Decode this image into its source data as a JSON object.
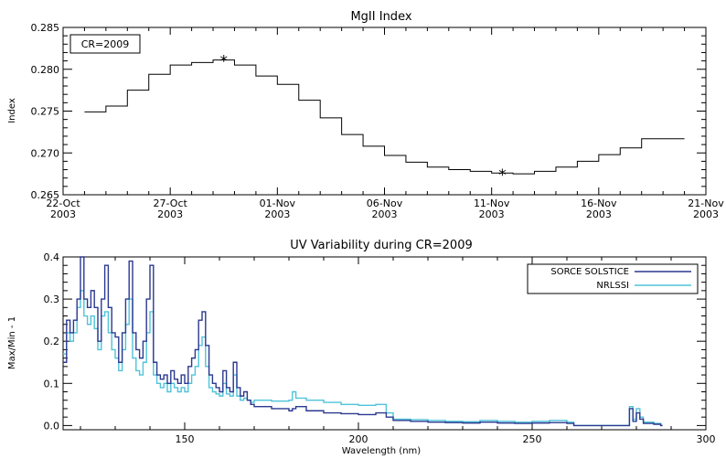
{
  "chart_data": [
    {
      "type": "line",
      "title": "MgII Index",
      "ylabel": "Index",
      "xlabel": "",
      "annotation": "CR=2009",
      "xlim": [
        "2003-10-22",
        "2003-11-21"
      ],
      "ylim": [
        0.265,
        0.285
      ],
      "x_ticks": [
        {
          "date": "2003-10-22",
          "label": [
            "22-Oct",
            "2003"
          ]
        },
        {
          "date": "2003-10-27",
          "label": [
            "27-Oct",
            "2003"
          ]
        },
        {
          "date": "2003-11-01",
          "label": [
            "01-Nov",
            "2003"
          ]
        },
        {
          "date": "2003-11-06",
          "label": [
            "06-Nov",
            "2003"
          ]
        },
        {
          "date": "2003-11-11",
          "label": [
            "11-Nov",
            "2003"
          ]
        },
        {
          "date": "2003-11-16",
          "label": [
            "16-Nov",
            "2003"
          ]
        },
        {
          "date": "2003-11-21",
          "label": [
            "21-Nov",
            "2003"
          ]
        }
      ],
      "y_ticks": [
        "0.265",
        "0.270",
        "0.275",
        "0.280",
        "0.285"
      ],
      "series": [
        {
          "step": true,
          "x": [
            "2003-10-23T12:00",
            "2003-10-24T12:00",
            "2003-10-25T12:00",
            "2003-10-26T12:00",
            "2003-10-27T12:00",
            "2003-10-28T12:00",
            "2003-10-29T12:00",
            "2003-10-30T12:00",
            "2003-10-31T12:00",
            "2003-11-01T12:00",
            "2003-11-02T12:00",
            "2003-11-03T12:00",
            "2003-11-04T12:00",
            "2003-11-05T12:00",
            "2003-11-06T12:00",
            "2003-11-07T12:00",
            "2003-11-08T12:00",
            "2003-11-09T12:00",
            "2003-11-10T12:00",
            "2003-11-11T12:00",
            "2003-11-12T12:00",
            "2003-11-13T12:00",
            "2003-11-14T12:00",
            "2003-11-15T12:00",
            "2003-11-16T12:00",
            "2003-11-17T12:00",
            "2003-11-18T12:00",
            "2003-11-19T12:00"
          ],
          "values": [
            0.2749,
            0.2756,
            0.2775,
            0.2794,
            0.2805,
            0.2808,
            0.2811,
            0.2805,
            0.2792,
            0.2782,
            0.2763,
            0.2742,
            0.2722,
            0.2708,
            0.2697,
            0.2689,
            0.2683,
            0.268,
            0.2678,
            0.2676,
            0.2675,
            0.2678,
            0.2683,
            0.269,
            0.2698,
            0.2706,
            0.2717,
            0.2717
          ]
        }
      ],
      "markers": [
        {
          "x": "2003-10-29T12:00",
          "y": 0.2811,
          "symbol": "*"
        },
        {
          "x": "2003-11-11T12:00",
          "y": 0.2675,
          "symbol": "*"
        }
      ]
    },
    {
      "type": "line",
      "title": "UV Variability during CR=2009",
      "xlabel": "Wavelength (nm)",
      "ylabel": "Max/Min - 1",
      "xlim": [
        115,
        300
      ],
      "ylim": [
        -0.01,
        0.4
      ],
      "x_ticks": [
        "150",
        "200",
        "250",
        "300"
      ],
      "y_ticks": [
        "0.0",
        "0.1",
        "0.2",
        "0.3",
        "0.4"
      ],
      "legend_position": "top-right",
      "series": [
        {
          "name": "SORCE SOLSTICE",
          "color": "#2b3990",
          "step": true,
          "x": [
            115,
            116,
            117,
            118,
            119,
            120,
            121,
            122,
            123,
            124,
            125,
            126,
            127,
            128,
            129,
            130,
            131,
            132,
            133,
            134,
            135,
            136,
            137,
            138,
            139,
            140,
            141,
            142,
            143,
            144,
            145,
            146,
            147,
            148,
            149,
            150,
            151,
            152,
            153,
            154,
            155,
            156,
            157,
            158,
            159,
            160,
            161,
            162,
            163,
            164,
            165,
            166,
            167,
            168,
            169,
            170,
            175,
            180,
            181,
            182,
            185,
            190,
            195,
            200,
            205,
            208,
            210,
            215,
            220,
            225,
            230,
            235,
            240,
            245,
            250,
            255,
            260,
            262,
            265,
            268,
            270,
            273,
            275,
            277,
            278,
            279,
            280,
            281,
            282,
            285,
            287
          ],
          "values": [
            0.15,
            0.25,
            0.22,
            0.25,
            0.3,
            0.4,
            0.3,
            0.28,
            0.32,
            0.28,
            0.2,
            0.3,
            0.38,
            0.28,
            0.22,
            0.21,
            0.15,
            0.22,
            0.3,
            0.39,
            0.22,
            0.18,
            0.16,
            0.2,
            0.3,
            0.38,
            0.15,
            0.12,
            0.11,
            0.12,
            0.1,
            0.13,
            0.11,
            0.1,
            0.12,
            0.1,
            0.14,
            0.16,
            0.18,
            0.25,
            0.27,
            0.19,
            0.12,
            0.1,
            0.09,
            0.08,
            0.13,
            0.09,
            0.08,
            0.15,
            0.09,
            0.07,
            0.08,
            0.06,
            0.05,
            0.045,
            0.04,
            0.035,
            0.04,
            0.045,
            0.035,
            0.03,
            0.028,
            0.026,
            0.03,
            0.02,
            0.012,
            0.01,
            0.008,
            0.007,
            0.006,
            0.008,
            0.006,
            0.005,
            0.006,
            0.007,
            0.005,
            0.0,
            0.0,
            0.0,
            0.0,
            0.0,
            0.0,
            0.0,
            0.04,
            0.01,
            0.03,
            0.015,
            0.005,
            0.003,
            0.0
          ]
        },
        {
          "name": "NRLSSI",
          "color": "#4fc3d9",
          "step": true,
          "x": [
            115,
            116,
            117,
            118,
            119,
            120,
            121,
            122,
            123,
            124,
            125,
            126,
            127,
            128,
            129,
            130,
            131,
            132,
            133,
            134,
            135,
            136,
            137,
            138,
            139,
            140,
            141,
            142,
            143,
            144,
            145,
            146,
            147,
            148,
            149,
            150,
            151,
            152,
            153,
            154,
            155,
            156,
            157,
            158,
            159,
            160,
            161,
            162,
            163,
            164,
            165,
            166,
            167,
            168,
            169,
            170,
            175,
            180,
            181,
            182,
            185,
            190,
            195,
            200,
            205,
            208,
            210,
            215,
            220,
            225,
            230,
            235,
            240,
            245,
            250,
            255,
            260,
            262,
            265,
            268,
            270,
            273,
            275,
            277,
            278,
            279,
            280,
            281,
            282,
            285,
            287
          ],
          "values": [
            0.17,
            0.22,
            0.2,
            0.22,
            0.28,
            0.32,
            0.26,
            0.24,
            0.26,
            0.23,
            0.18,
            0.26,
            0.27,
            0.22,
            0.18,
            0.16,
            0.13,
            0.18,
            0.24,
            0.3,
            0.16,
            0.13,
            0.12,
            0.15,
            0.22,
            0.27,
            0.12,
            0.1,
            0.09,
            0.1,
            0.08,
            0.1,
            0.09,
            0.08,
            0.09,
            0.08,
            0.1,
            0.12,
            0.14,
            0.19,
            0.21,
            0.14,
            0.09,
            0.08,
            0.075,
            0.07,
            0.1,
            0.075,
            0.07,
            0.12,
            0.07,
            0.06,
            0.065,
            0.06,
            0.055,
            0.06,
            0.058,
            0.06,
            0.08,
            0.065,
            0.06,
            0.055,
            0.05,
            0.048,
            0.05,
            0.03,
            0.015,
            0.014,
            0.012,
            0.01,
            0.009,
            0.012,
            0.01,
            0.008,
            0.01,
            0.012,
            0.008,
            0.0,
            0.0,
            0.0,
            0.0,
            0.0,
            0.0,
            0.0,
            0.045,
            0.015,
            0.04,
            0.02,
            0.008,
            0.005,
            0.0
          ]
        }
      ]
    }
  ]
}
